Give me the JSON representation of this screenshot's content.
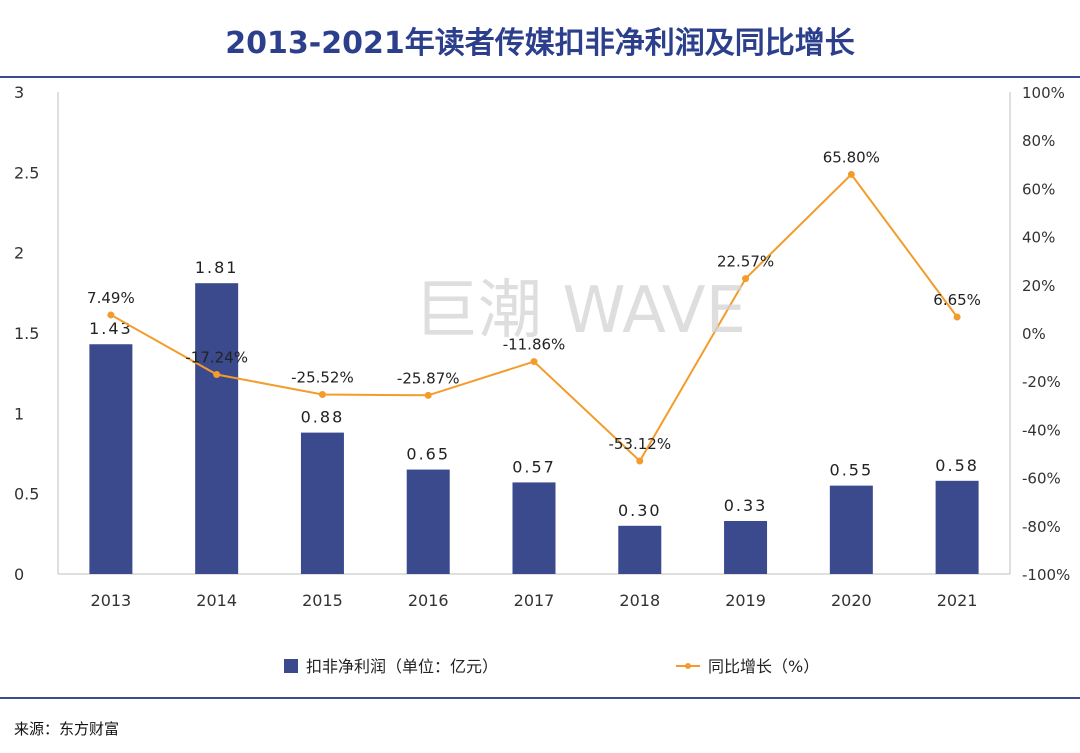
{
  "title": "2013-2021年读者传媒扣非净利润及同比增长",
  "source": "来源：东方财富",
  "watermark": "巨潮 WAVE",
  "chart_data": {
    "type": "bar",
    "title": "2013-2021年读者传媒扣非净利润及同比增长",
    "categories": [
      "2013",
      "2014",
      "2015",
      "2016",
      "2017",
      "2018",
      "2019",
      "2020",
      "2021"
    ],
    "series": [
      {
        "name": "扣非净利润（单位：亿元）",
        "type": "bar",
        "axis": "left",
        "color": "#3b4a8c",
        "values": [
          1.43,
          1.81,
          0.88,
          0.65,
          0.57,
          0.3,
          0.33,
          0.55,
          0.58
        ],
        "labels": [
          "1.43",
          "1.81",
          "0.88",
          "0.65",
          "0.57",
          "0.30",
          "0.33",
          "0.55",
          "0.58"
        ]
      },
      {
        "name": "同比增长（%）",
        "type": "line",
        "axis": "right",
        "color": "#f39c2b",
        "values": [
          7.49,
          -17.24,
          -25.52,
          -25.87,
          -11.86,
          -53.12,
          22.57,
          65.8,
          6.65
        ],
        "labels": [
          "7.49%",
          "-17.24%",
          "-25.52%",
          "-25.87%",
          "-11.86%",
          "-53.12%",
          "22.57%",
          "65.80%",
          "6.65%"
        ]
      }
    ],
    "y_left": {
      "ylim": [
        0,
        3
      ],
      "ticks": [
        "0",
        "0.5",
        "1",
        "1.5",
        "2",
        "2.5",
        "3"
      ],
      "tick_values": [
        0,
        0.5,
        1,
        1.5,
        2,
        2.5,
        3
      ]
    },
    "y_right": {
      "ylim": [
        -100,
        100
      ],
      "ticks": [
        "-100%",
        "-80%",
        "-60%",
        "-40%",
        "-20%",
        "0%",
        "20%",
        "40%",
        "60%",
        "80%",
        "100%"
      ],
      "tick_values": [
        -100,
        -80,
        -60,
        -40,
        -20,
        0,
        20,
        40,
        60,
        80,
        100
      ]
    },
    "legend": {
      "position": "bottom"
    }
  }
}
